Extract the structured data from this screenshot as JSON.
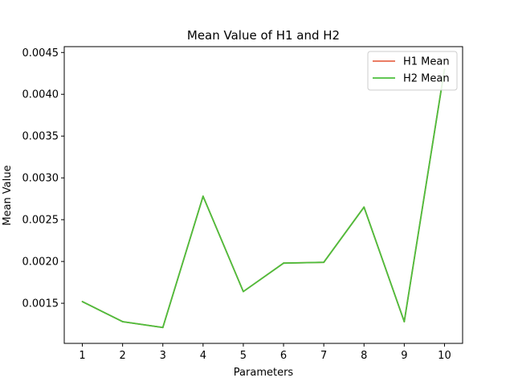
{
  "chart_data": {
    "type": "line",
    "title": "Mean Value of H1 and H2",
    "xlabel": "Parameters",
    "ylabel": "Mean Value",
    "x": [
      1,
      2,
      3,
      4,
      5,
      6,
      7,
      8,
      9,
      10
    ],
    "xlim": [
      0.55,
      10.45
    ],
    "ylim": [
      0.00102,
      0.00457
    ],
    "yticks": [
      0.0015,
      0.002,
      0.0025,
      0.003,
      0.0035,
      0.004,
      0.0045
    ],
    "ytick_labels": [
      "0.0015",
      "0.0020",
      "0.0025",
      "0.0030",
      "0.0035",
      "0.0040",
      "0.0045"
    ],
    "xtick_labels": [
      "1",
      "2",
      "3",
      "4",
      "5",
      "6",
      "7",
      "8",
      "9",
      "10"
    ],
    "grid": false,
    "legend_position": "top-right",
    "series": [
      {
        "name": "H1 Mean",
        "color": "#e8694e",
        "values": [
          0.00152,
          0.00128,
          0.00121,
          0.00278,
          0.00164,
          0.00198,
          0.00199,
          0.00265,
          0.00128,
          0.0043
        ]
      },
      {
        "name": "H2 Mean",
        "color": "#4cbf3c",
        "values": [
          0.00152,
          0.00128,
          0.00121,
          0.00278,
          0.00164,
          0.00198,
          0.00199,
          0.00265,
          0.00128,
          0.0043
        ]
      }
    ]
  }
}
